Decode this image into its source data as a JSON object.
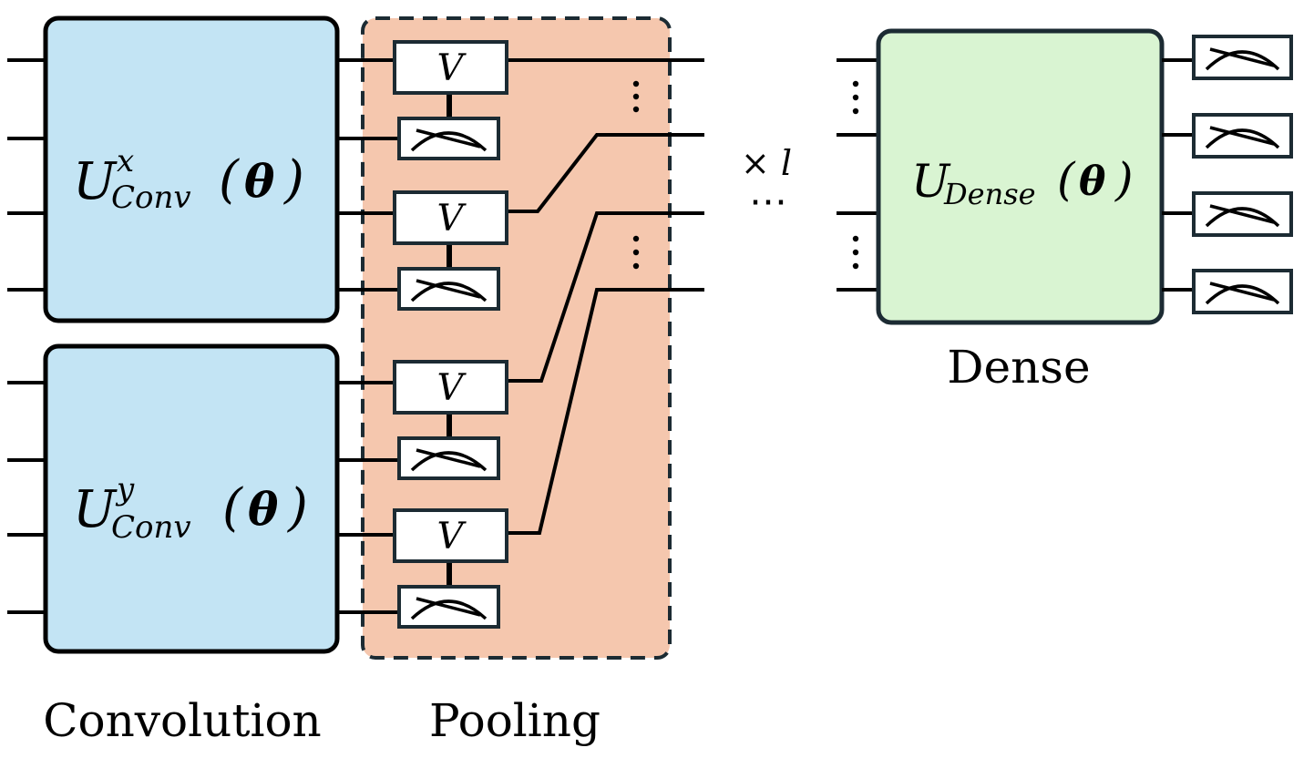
{
  "colors": {
    "conv_fill": "#c3e4f4",
    "pool_fill": "#f5c7ae",
    "dense_fill": "#d9f4d2",
    "border": "#1c2b33"
  },
  "blocks": {
    "conv_x": {
      "base": "U",
      "sup": "x",
      "sub": "Conv",
      "open": "(",
      "theta": "θ",
      "close": ")"
    },
    "conv_y": {
      "base": "U",
      "sup": "y",
      "sub": "Conv",
      "open": "(",
      "theta": "θ",
      "close": ")"
    },
    "dense": {
      "base": "U",
      "sub": "Dense",
      "open": "(",
      "theta": "θ",
      "close": ")"
    }
  },
  "gates": {
    "v_label": "V"
  },
  "repeat": {
    "label": "× l",
    "ellipsis": "⋯"
  },
  "labels": {
    "convolution": "Convolution",
    "pooling": "Pooling",
    "dense": "Dense"
  }
}
